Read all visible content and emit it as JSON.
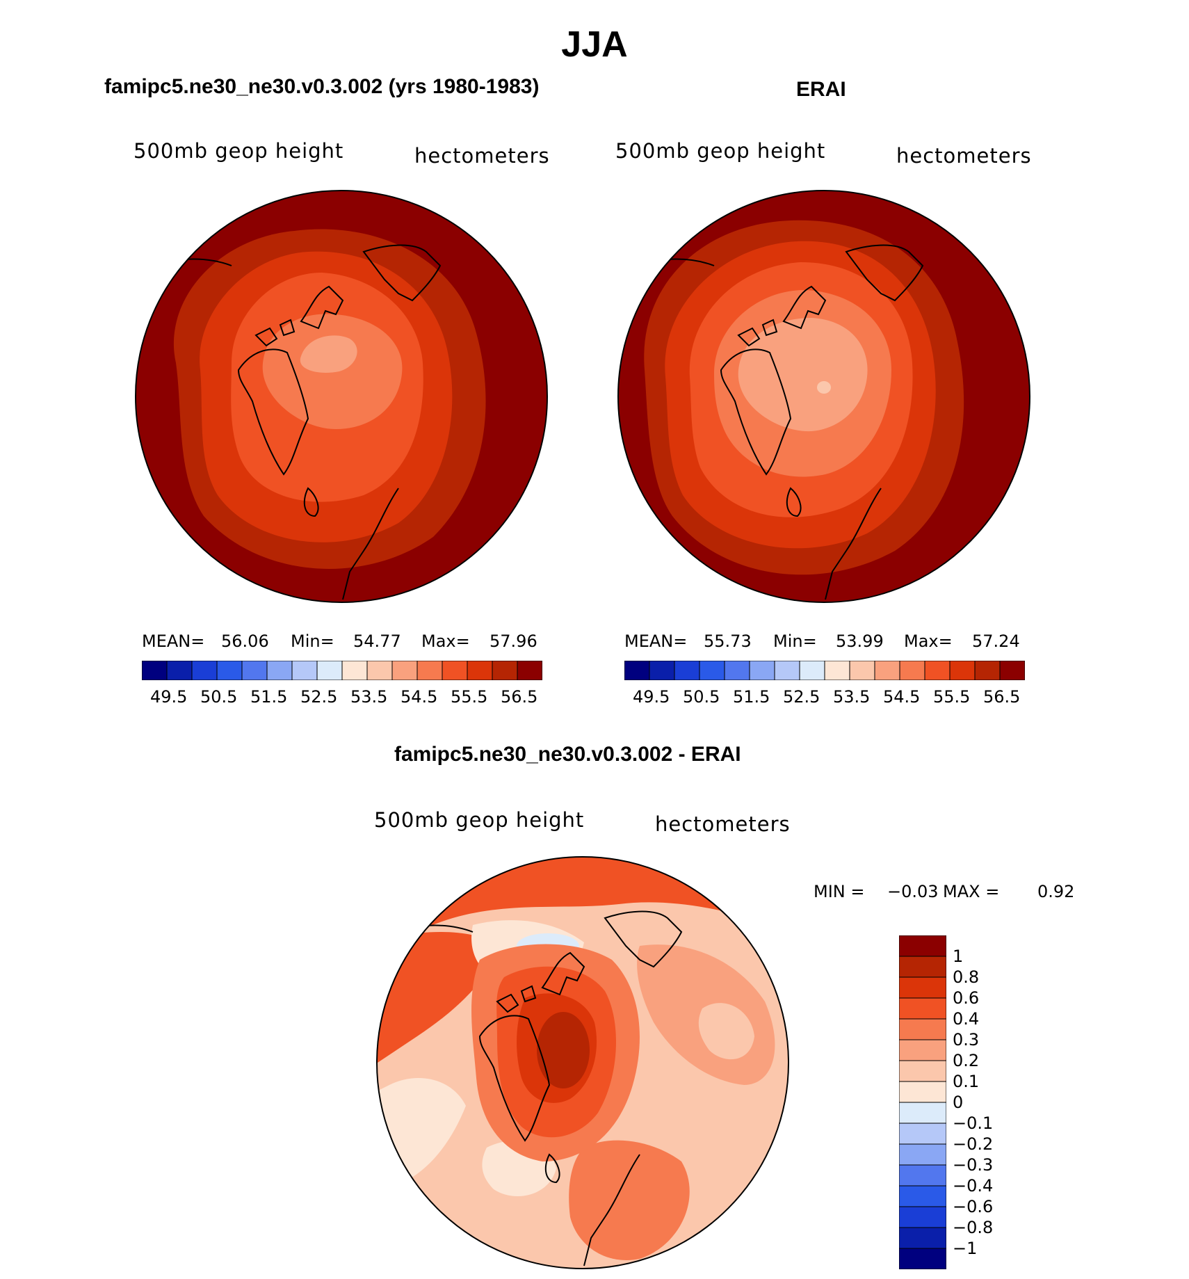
{
  "title": "JJA",
  "colors": {
    "abs_scale": [
      "#00007f",
      "#0a1faa",
      "#1a3ed6",
      "#2a5ae8",
      "#5277ee",
      "#8aa7f4",
      "#b5c8f8",
      "#dcebfa",
      "#fde6d5",
      "#fbc7ac",
      "#f9a17e",
      "#f67a4f",
      "#f05224",
      "#db3509",
      "#b52503",
      "#8b0000"
    ],
    "diff_scale": [
      "#8b0000",
      "#b52503",
      "#db3509",
      "#f05224",
      "#f67a4f",
      "#f9a17e",
      "#fbc7ac",
      "#fde6d5",
      "#dcebfa",
      "#b5c8f8",
      "#8aa7f4",
      "#5277ee",
      "#2a5ae8",
      "#1a3ed6",
      "#0a1faa",
      "#00007f"
    ]
  },
  "panels": {
    "model": {
      "title": "famipc5.ne30_ne30.v0.3.002 (yrs 1980-1983)",
      "variable": "500mb geop height",
      "units": "hectometers",
      "mean_label": "MEAN=",
      "mean_value": "56.06",
      "min_label": "Min=",
      "min_value": "54.77",
      "max_label": "Max=",
      "max_value": "57.96",
      "ticks": [
        "49.5",
        "50.5",
        "51.5",
        "52.5",
        "53.5",
        "54.5",
        "55.5",
        "56.5"
      ]
    },
    "obs": {
      "title": "ERAI",
      "variable": "500mb geop height",
      "units": "hectometers",
      "mean_label": "MEAN=",
      "mean_value": "55.73",
      "min_label": "Min=",
      "min_value": "53.99",
      "max_label": "Max=",
      "max_value": "57.24",
      "ticks": [
        "49.5",
        "50.5",
        "51.5",
        "52.5",
        "53.5",
        "54.5",
        "55.5",
        "56.5"
      ]
    },
    "diff": {
      "title": "famipc5.ne30_ne30.v0.3.002 - ERAI",
      "variable": "500mb geop height",
      "units": "hectometers",
      "min_label": "MIN =",
      "min_value": "−0.03",
      "max_label": "MAX =",
      "max_value": "0.92",
      "ticks": [
        "1",
        "0.8",
        "0.6",
        "0.4",
        "0.3",
        "0.2",
        "0.1",
        "0",
        "−0.1",
        "−0.2",
        "−0.3",
        "−0.4",
        "−0.6",
        "−0.8",
        "−1"
      ]
    }
  }
}
